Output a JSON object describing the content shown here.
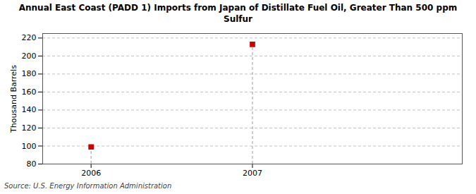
{
  "chart_data": {
    "type": "stem",
    "title": "Annual East Coast (PADD 1) Imports from Japan of Distillate Fuel Oil, Greater Than 500 ppm\nSulfur",
    "ylabel": "Thousand Barrels",
    "source": "Source: U.S. Energy Information Administration",
    "x": [
      2006,
      2007
    ],
    "values": [
      99,
      213
    ],
    "color": "#cc0000",
    "marker": "square",
    "line_style": "dashed",
    "xlim": [
      2005.7,
      2008.3
    ],
    "xticks": [
      2006,
      2007
    ],
    "ylim": [
      80,
      225
    ],
    "yticks": [
      80,
      100,
      120,
      140,
      160,
      180,
      200,
      220
    ],
    "grid": true
  }
}
